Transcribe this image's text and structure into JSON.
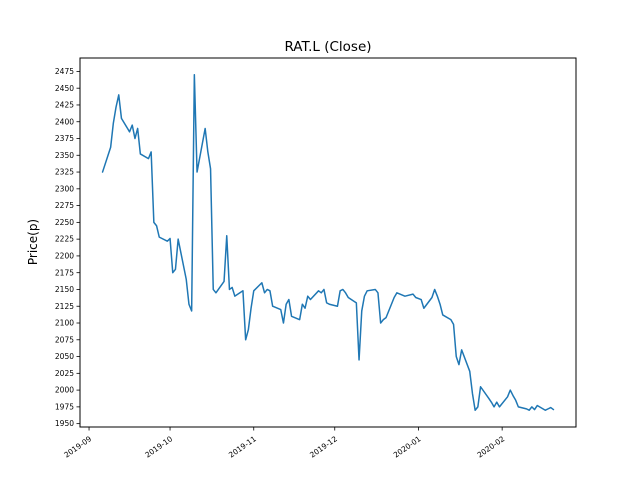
{
  "chart_data": {
    "type": "line",
    "title": "RAT.L (Close)",
    "ylabel": "Price(p)",
    "xlabel": "",
    "legend": "none",
    "grid": false,
    "background_color": "#ffffff",
    "axis_color": "#000000",
    "line_color": "#1f77b4",
    "x_tick_labels": [
      "2019-09",
      "2019-10",
      "2019-11",
      "2019-12",
      "2020-01",
      "2020-02"
    ],
    "y_ticks": [
      1950,
      1975,
      2000,
      2025,
      2050,
      2075,
      2100,
      2125,
      2150,
      2175,
      2200,
      2225,
      2250,
      2275,
      2300,
      2325,
      2350,
      2375,
      2400,
      2425,
      2450,
      2475
    ],
    "ylim": [
      1945,
      2495
    ],
    "dates": [
      "2019-09-06",
      "2019-09-09",
      "2019-09-10",
      "2019-09-11",
      "2019-09-12",
      "2019-09-13",
      "2019-09-16",
      "2019-09-17",
      "2019-09-18",
      "2019-09-19",
      "2019-09-20",
      "2019-09-23",
      "2019-09-24",
      "2019-09-25",
      "2019-09-26",
      "2019-09-27",
      "2019-09-30",
      "2019-10-01",
      "2019-10-02",
      "2019-10-03",
      "2019-10-04",
      "2019-10-07",
      "2019-10-08",
      "2019-10-09",
      "2019-10-10",
      "2019-10-11",
      "2019-10-14",
      "2019-10-15",
      "2019-10-16",
      "2019-10-17",
      "2019-10-18",
      "2019-10-21",
      "2019-10-22",
      "2019-10-23",
      "2019-10-24",
      "2019-10-25",
      "2019-10-28",
      "2019-10-29",
      "2019-10-30",
      "2019-10-31",
      "2019-11-01",
      "2019-11-04",
      "2019-11-05",
      "2019-11-06",
      "2019-11-07",
      "2019-11-08",
      "2019-11-11",
      "2019-11-12",
      "2019-11-13",
      "2019-11-14",
      "2019-11-15",
      "2019-11-18",
      "2019-11-19",
      "2019-11-20",
      "2019-11-21",
      "2019-11-22",
      "2019-11-25",
      "2019-11-26",
      "2019-11-27",
      "2019-11-28",
      "2019-11-29",
      "2019-12-02",
      "2019-12-03",
      "2019-12-04",
      "2019-12-05",
      "2019-12-06",
      "2019-12-09",
      "2019-12-10",
      "2019-12-11",
      "2019-12-12",
      "2019-12-13",
      "2019-12-16",
      "2019-12-17",
      "2019-12-18",
      "2019-12-19",
      "2019-12-20",
      "2019-12-23",
      "2019-12-24",
      "2019-12-27",
      "2019-12-30",
      "2019-12-31",
      "2020-01-02",
      "2020-01-03",
      "2020-01-06",
      "2020-01-07",
      "2020-01-08",
      "2020-01-09",
      "2020-01-10",
      "2020-01-13",
      "2020-01-14",
      "2020-01-15",
      "2020-01-16",
      "2020-01-17",
      "2020-01-20",
      "2020-01-21",
      "2020-01-22",
      "2020-01-23",
      "2020-01-24",
      "2020-01-27",
      "2020-01-28",
      "2020-01-29",
      "2020-01-30",
      "2020-01-31",
      "2020-02-03",
      "2020-02-04",
      "2020-02-05",
      "2020-02-06",
      "2020-02-07",
      "2020-02-10",
      "2020-02-11",
      "2020-02-12",
      "2020-02-13",
      "2020-02-14",
      "2020-02-17",
      "2020-02-18",
      "2020-02-19",
      "2020-02-20"
    ],
    "close": [
      2325,
      2362,
      2398,
      2422,
      2440,
      2405,
      2385,
      2395,
      2375,
      2390,
      2352,
      2345,
      2355,
      2250,
      2245,
      2228,
      2222,
      2226,
      2175,
      2180,
      2225,
      2165,
      2128,
      2118,
      2470,
      2325,
      2390,
      2355,
      2330,
      2150,
      2145,
      2162,
      2230,
      2150,
      2153,
      2140,
      2148,
      2075,
      2090,
      2122,
      2148,
      2160,
      2145,
      2150,
      2148,
      2125,
      2120,
      2100,
      2128,
      2135,
      2110,
      2105,
      2128,
      2122,
      2140,
      2135,
      2148,
      2145,
      2150,
      2130,
      2128,
      2125,
      2148,
      2150,
      2145,
      2138,
      2130,
      2045,
      2118,
      2140,
      2148,
      2150,
      2145,
      2100,
      2105,
      2108,
      2138,
      2145,
      2140,
      2143,
      2138,
      2135,
      2122,
      2138,
      2150,
      2140,
      2128,
      2112,
      2105,
      2098,
      2050,
      2038,
      2060,
      2028,
      1995,
      1970,
      1975,
      2005,
      1988,
      1982,
      1975,
      1982,
      1975,
      1990,
      2000,
      1992,
      1985,
      1975,
      1972,
      1970,
      1975,
      1971,
      1977,
      1970,
      1972,
      1974,
      1971
    ]
  }
}
